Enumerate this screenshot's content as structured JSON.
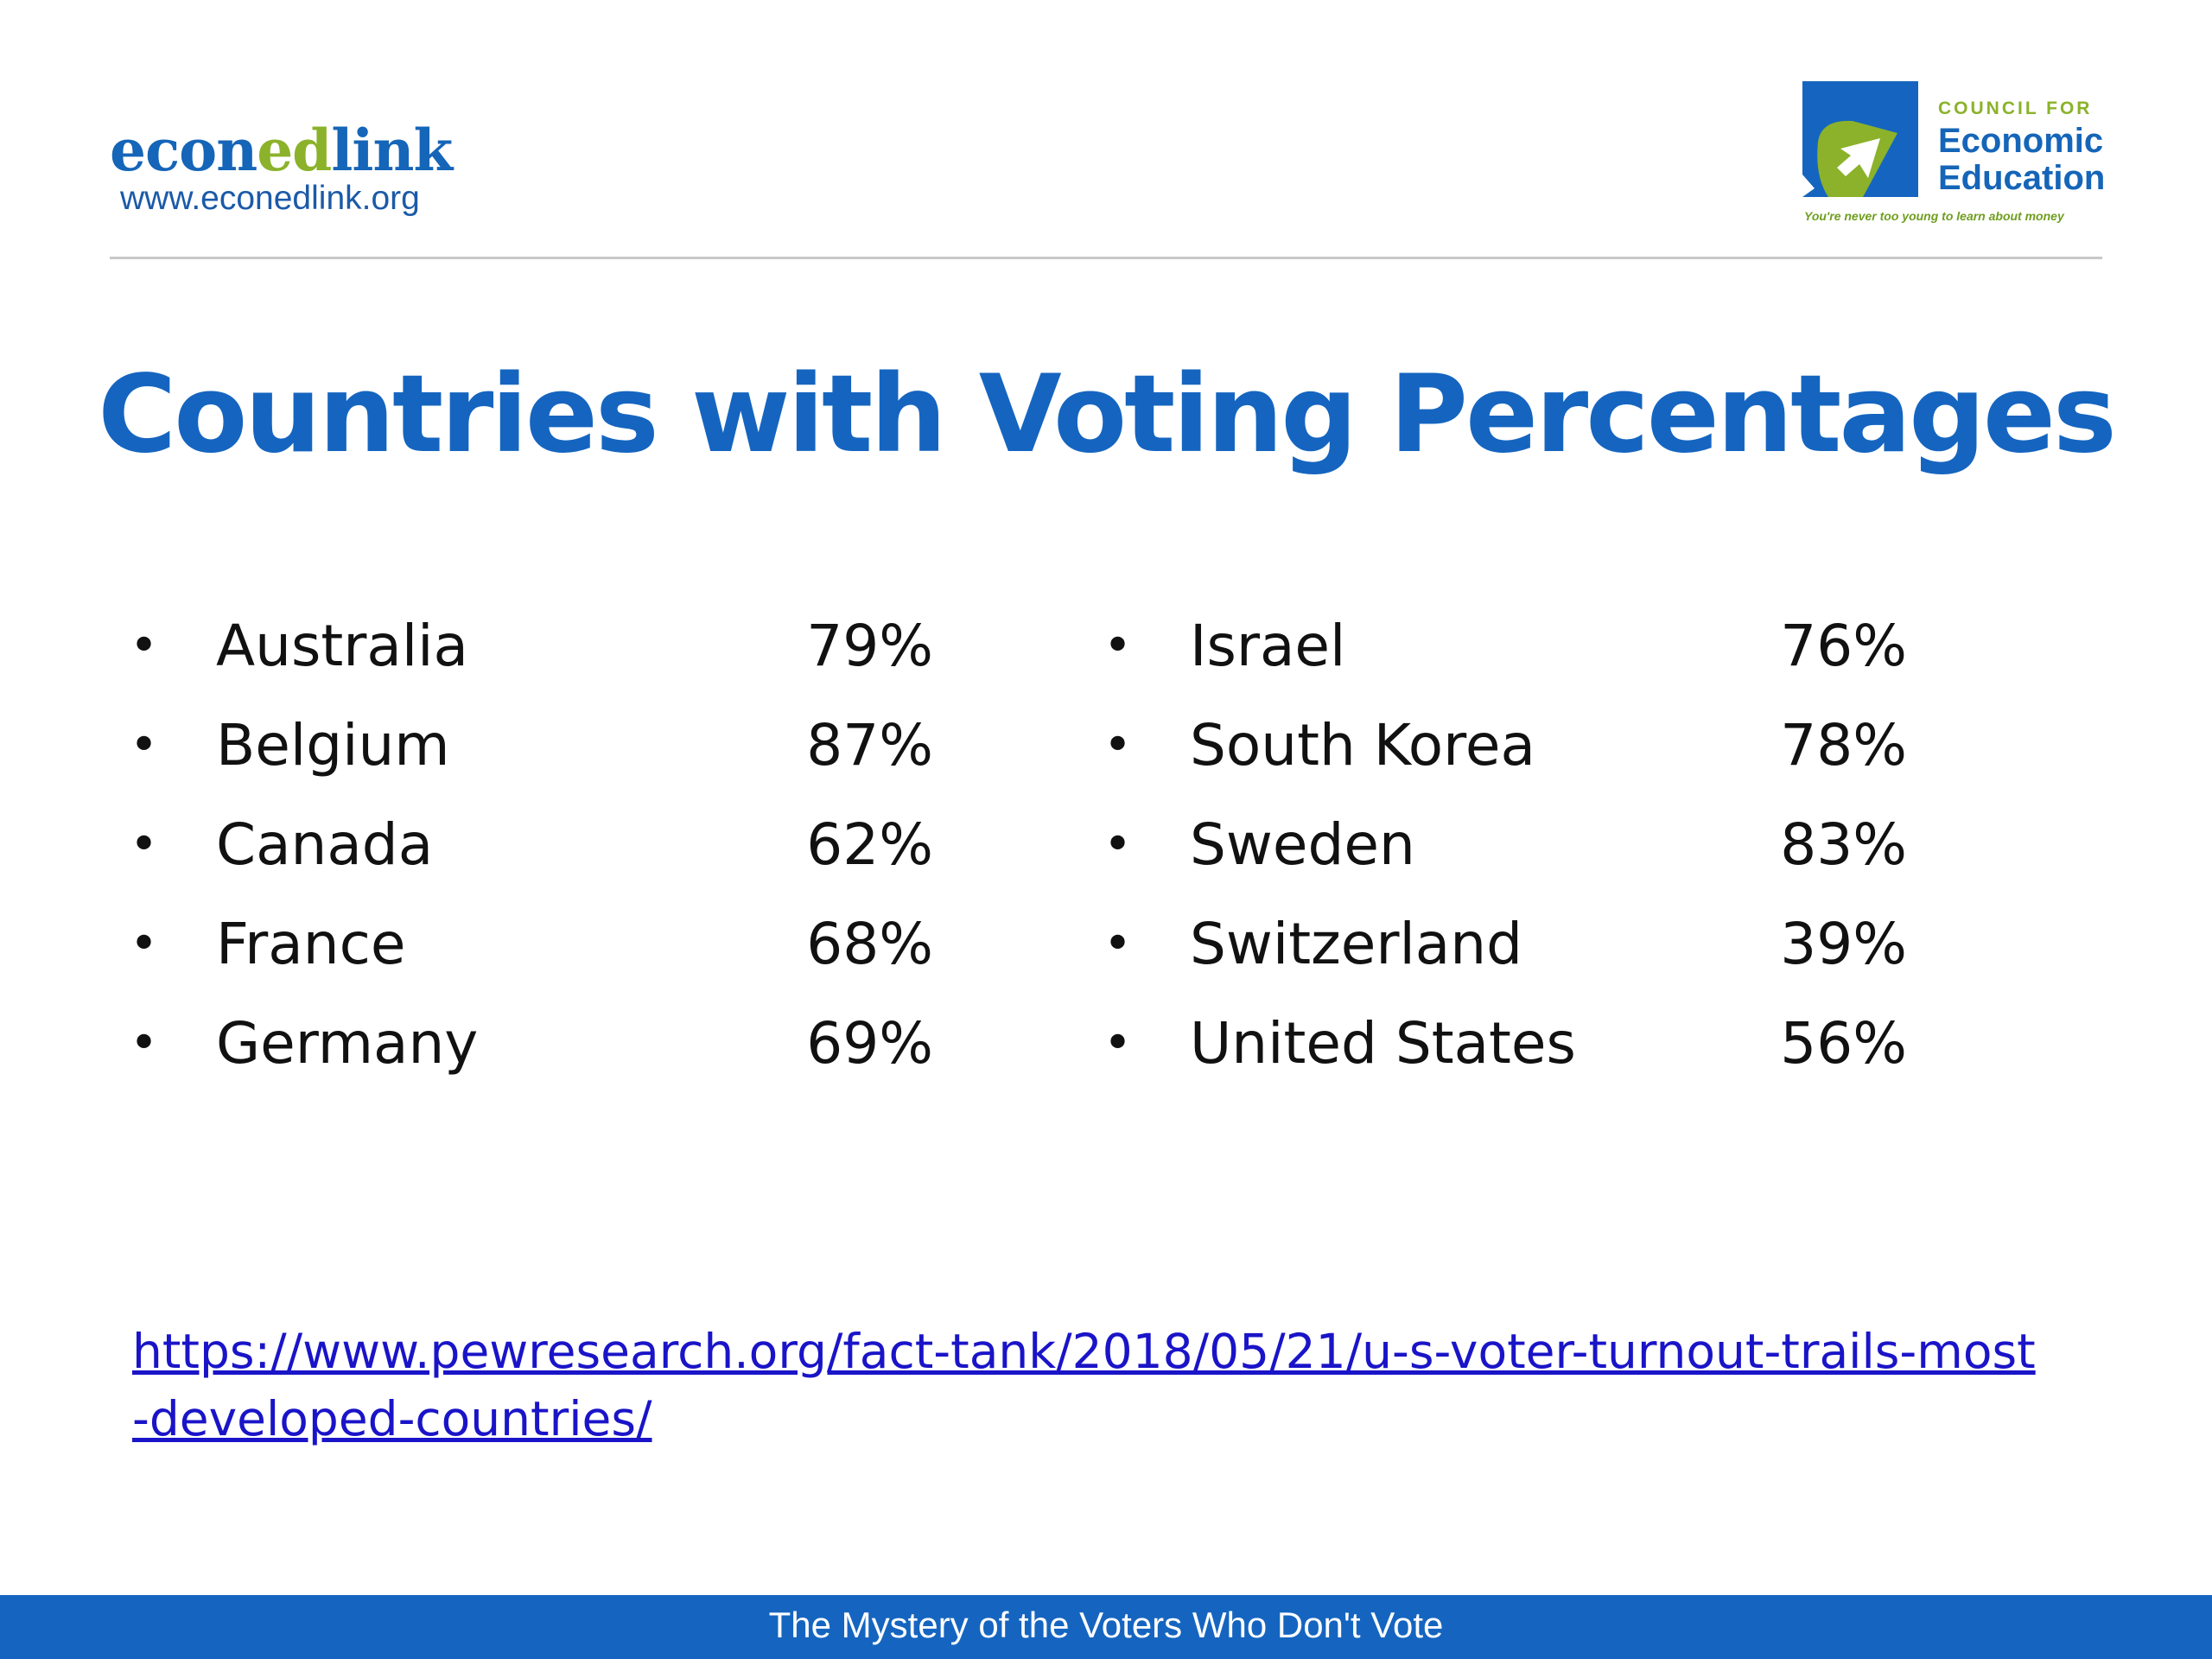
{
  "header": {
    "left_logo": {
      "wordmark_part1": "econ",
      "wordmark_part2": "ed",
      "wordmark_part3": "link",
      "url": "www.econedlink.org"
    },
    "right_logo": {
      "kicker": "COUNCIL FOR",
      "name_line1": "Economic",
      "name_line2": "Education",
      "tagline": "You're never too young to learn about money"
    }
  },
  "title": "Countries with Voting Percentages",
  "left_list": [
    {
      "bullet": "•",
      "country": "Australia",
      "percent": "79%"
    },
    {
      "bullet": "•",
      "country": "Belgium",
      "percent": "87%"
    },
    {
      "bullet": "•",
      "country": "Canada",
      "percent": "62%"
    },
    {
      "bullet": "•",
      "country": "France",
      "percent": "68%"
    },
    {
      "bullet": "•",
      "country": "Germany",
      "percent": "69%"
    }
  ],
  "right_list": [
    {
      "bullet": "•",
      "country": "Israel",
      "percent": "76%"
    },
    {
      "bullet": "•",
      "country": "South Korea",
      "percent": "78%"
    },
    {
      "bullet": "•",
      "country": "Sweden",
      "percent": "83%"
    },
    {
      "bullet": "•",
      "country": "Switzerland",
      "percent": "39%"
    },
    {
      "bullet": "•",
      "country": "United States",
      "percent": "56%"
    }
  ],
  "source_link": "https://www.pewresearch.org/fact-tank/2018/05/21/u-s-voter-turnout-trails-most-developed-countries/",
  "footer": "The Mystery of the Voters Who Don't Vote",
  "colors": {
    "brand_blue": "#1565c0",
    "brand_green": "#8bb22a",
    "link": "#1a14c8"
  }
}
